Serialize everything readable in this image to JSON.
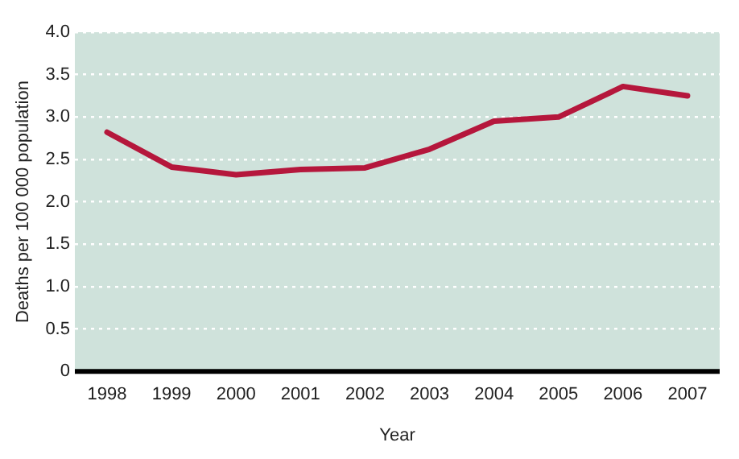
{
  "chart_data": {
    "type": "line",
    "xlabel": "Year",
    "ylabel": "Deaths per 100 000 population",
    "categories": [
      "1998",
      "1999",
      "2000",
      "2001",
      "2002",
      "2003",
      "2004",
      "2005",
      "2006",
      "2007"
    ],
    "series": [
      {
        "color": "#b5173c",
        "values": [
          2.82,
          2.41,
          2.32,
          2.38,
          2.4,
          2.62,
          2.95,
          3.0,
          3.36,
          3.25
        ]
      }
    ],
    "ylim": [
      0,
      4
    ],
    "yticks": [
      0,
      {
        "value": 0.5,
        "label": "0.5"
      },
      {
        "value": 1,
        "label": "1.0"
      },
      {
        "value": 1.5,
        "label": "1.5"
      },
      {
        "value": 2,
        "label": "2.0"
      },
      {
        "value": 2.5,
        "label": "2.5"
      },
      {
        "value": 3,
        "label": "3.0"
      },
      {
        "value": 3.5,
        "label": "3.5"
      },
      {
        "value": 4,
        "label": "4.0"
      }
    ],
    "grid": "y",
    "legend": false,
    "marker": "none",
    "line_style": "solid"
  }
}
